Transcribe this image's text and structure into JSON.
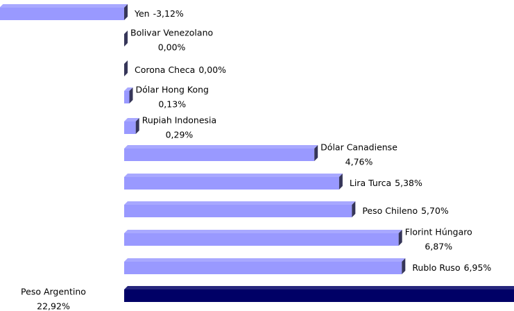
{
  "chart_data": {
    "type": "bar",
    "orientation": "horizontal",
    "categories": [
      "Yen",
      "Bolivar Venezolano",
      "Corona Checa",
      "Dólar Hong Kong",
      "Rupiah Indonesia",
      "Dólar Canadiense",
      "Lira Turca",
      "Peso Chileno",
      "Florint Húngaro",
      "Rublo Ruso",
      "Peso Argentino"
    ],
    "values": [
      -3.12,
      0,
      0,
      0.13,
      0.29,
      4.76,
      5.38,
      5.7,
      6.87,
      6.95,
      22.92
    ],
    "value_labels": [
      "-3,12%",
      "0,00%",
      "0,00%",
      "0,13%",
      "0,29%",
      "4,76%",
      "5,38%",
      "5,70%",
      "6,87%",
      "6,95%",
      "22,92%"
    ],
    "colors": [
      "#9999ff",
      "#9999ff",
      "#9999ff",
      "#9999ff",
      "#9999ff",
      "#9999ff",
      "#9999ff",
      "#9999ff",
      "#9999ff",
      "#9999ff",
      "#000066"
    ]
  }
}
